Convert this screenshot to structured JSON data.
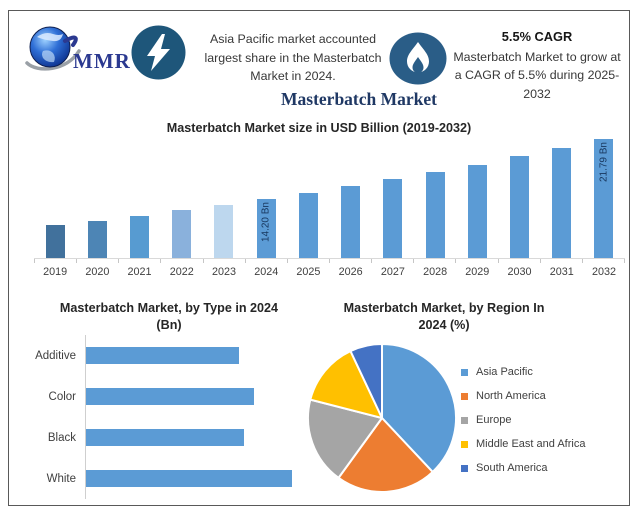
{
  "header": {
    "logo_text": "MMR",
    "left_note": {
      "lines": [
        "Asia Pacific market accounted",
        "largest share in the Masterbatch",
        "Market in 2024."
      ]
    },
    "right_note": {
      "heading": "5.5% CAGR",
      "lines": [
        "Masterbatch Market to grow at",
        "a CAGR of 5.5% during 2025-",
        "2032"
      ]
    },
    "main_title": "Masterbatch Market"
  },
  "colors": {
    "accent_bar": "#5b9bd5",
    "navy_title": "#1f3864",
    "bolt_circle": "#1e567a",
    "flame_circle": "#2a5d87",
    "axis_line": "#d9d9d9"
  },
  "chart_data": [
    {
      "id": "market-size",
      "type": "bar",
      "title": "Masterbatch Market size in USD Billion (2019-2032)",
      "ylabel": "USD Billion",
      "axis_hidden": true,
      "ylim": [
        6.7,
        21.79
      ],
      "categories": [
        "2019",
        "2020",
        "2021",
        "2022",
        "2023",
        "2024",
        "2025",
        "2026",
        "2027",
        "2028",
        "2029",
        "2030",
        "2031",
        "2032"
      ],
      "values": [
        10.87,
        11.46,
        12.09,
        12.76,
        13.46,
        14.2,
        14.98,
        15.8,
        16.67,
        17.59,
        18.56,
        19.58,
        20.65,
        21.79
      ],
      "bar_colors": [
        "#41719c",
        "#4d85b5",
        "#579bd1",
        "#8ab1dc",
        "#bdd7ee",
        "#5b9bd5",
        "#5b9bd5",
        "#5b9bd5",
        "#5b9bd5",
        "#5b9bd5",
        "#5b9bd5",
        "#5b9bd5",
        "#5b9bd5",
        "#5b9bd5"
      ],
      "data_labels": {
        "2024": "14.20 Bn",
        "2032": "21.79 Bn"
      }
    },
    {
      "id": "by-type",
      "type": "bar",
      "orientation": "horizontal",
      "title_line1": "Masterbatch Market, by Type in 2024",
      "title_line2": "(Bn)",
      "categories": [
        "Additive",
        "Color",
        "Black",
        "White"
      ],
      "values": [
        3.2,
        3.5,
        3.3,
        4.3
      ],
      "bar_color": "#5b9bd5",
      "xlim": [
        0,
        4.3
      ]
    },
    {
      "id": "by-region",
      "type": "pie",
      "title_line1": "Masterbatch Market, by Region In",
      "title_line2": "2024 (%)",
      "start_angle_deg": 0,
      "direction": "clockwise",
      "legend_position": "right",
      "slices": [
        {
          "label": "Asia Pacific",
          "value": 38,
          "color": "#5b9bd5"
        },
        {
          "label": "North America",
          "value": 22,
          "color": "#ed7d31"
        },
        {
          "label": "Europe",
          "value": 19,
          "color": "#a5a5a5"
        },
        {
          "label": "Middle East and Africa",
          "value": 14,
          "color": "#ffc000"
        },
        {
          "label": "South America",
          "value": 7,
          "color": "#4472c4"
        }
      ]
    }
  ]
}
